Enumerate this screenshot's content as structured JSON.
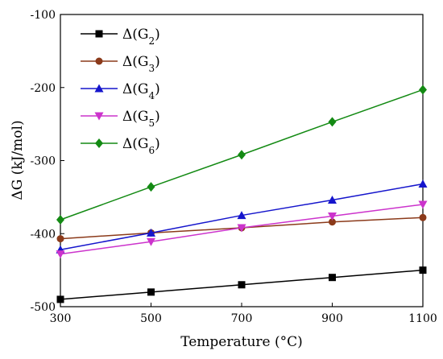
{
  "chart_data": {
    "type": "line",
    "title": "",
    "xlabel": "Temperature (°C)",
    "ylabel": "ΔG (kJ/mol)",
    "x": [
      300,
      500,
      700,
      900,
      1100
    ],
    "xlim": [
      300,
      1100
    ],
    "ylim": [
      -500,
      -100
    ],
    "xticks": [
      "300",
      "500",
      "700",
      "900",
      "1100"
    ],
    "yticks": [
      "-500",
      "-400",
      "-300",
      "-200",
      "-100"
    ],
    "grid": false,
    "legend_position": "top-left",
    "series": [
      {
        "name": "Δ(G2)",
        "label_base": "Δ(G",
        "label_sub": "2",
        "label_end": ")",
        "color": "#000000",
        "marker": "square",
        "values": [
          -490,
          -480,
          -470,
          -460,
          -450
        ]
      },
      {
        "name": "Δ(G3)",
        "label_base": "Δ(G",
        "label_sub": "3",
        "label_end": ")",
        "color": "#8B3A1A",
        "marker": "circle",
        "values": [
          -407,
          -399,
          -392,
          -384,
          -378
        ]
      },
      {
        "name": "Δ(G4)",
        "label_base": "Δ(G",
        "label_sub": "4",
        "label_end": ")",
        "color": "#1515CC",
        "marker": "triangle-up",
        "values": [
          -422,
          -399,
          -375,
          -354,
          -332
        ]
      },
      {
        "name": "Δ(G5)",
        "label_base": "Δ(G",
        "label_sub": "5",
        "label_end": ")",
        "color": "#CC33CC",
        "marker": "triangle-down",
        "values": [
          -428,
          -411,
          -392,
          -376,
          -360
        ]
      },
      {
        "name": "Δ(G6)",
        "label_base": "Δ(G",
        "label_sub": "6",
        "label_end": ")",
        "color": "#138A13",
        "marker": "diamond",
        "values": [
          -381,
          -336,
          -292,
          -247,
          -203
        ]
      }
    ]
  }
}
